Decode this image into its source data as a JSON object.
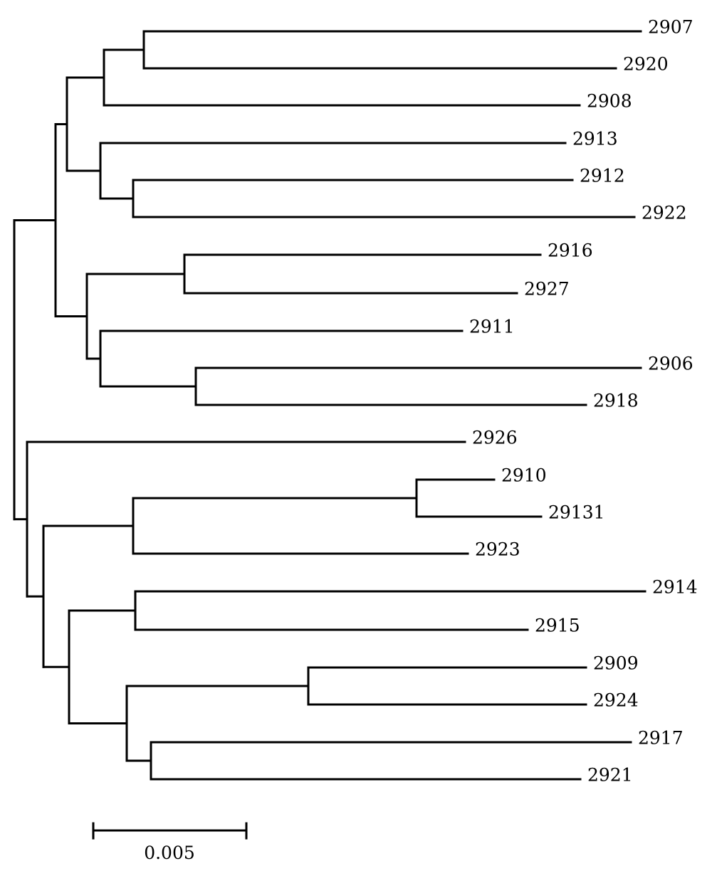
{
  "tree": {
    "leaves": [
      {
        "id": "L2907",
        "label": "2907"
      },
      {
        "id": "L2920",
        "label": "2920"
      },
      {
        "id": "L2908",
        "label": "2908"
      },
      {
        "id": "L2913",
        "label": "2913"
      },
      {
        "id": "L2912",
        "label": "2912"
      },
      {
        "id": "L2922",
        "label": "2922"
      },
      {
        "id": "L2916",
        "label": "2916"
      },
      {
        "id": "L2927",
        "label": "2927"
      },
      {
        "id": "L2911",
        "label": "2911"
      },
      {
        "id": "L2906",
        "label": "2906"
      },
      {
        "id": "L2918",
        "label": "2918"
      },
      {
        "id": "L2926",
        "label": "2926"
      },
      {
        "id": "L2910",
        "label": "2910"
      },
      {
        "id": "L29131",
        "label": "29131"
      },
      {
        "id": "L2923",
        "label": "2923"
      },
      {
        "id": "L2914",
        "label": "2914"
      },
      {
        "id": "L2915",
        "label": "2915"
      },
      {
        "id": "L2909",
        "label": "2909"
      },
      {
        "id": "L2924",
        "label": "2924"
      },
      {
        "id": "L2917",
        "label": "2917"
      },
      {
        "id": "L2921",
        "label": "2921"
      }
    ],
    "scale_bar": {
      "value": 0.005,
      "label": "0.005"
    }
  }
}
